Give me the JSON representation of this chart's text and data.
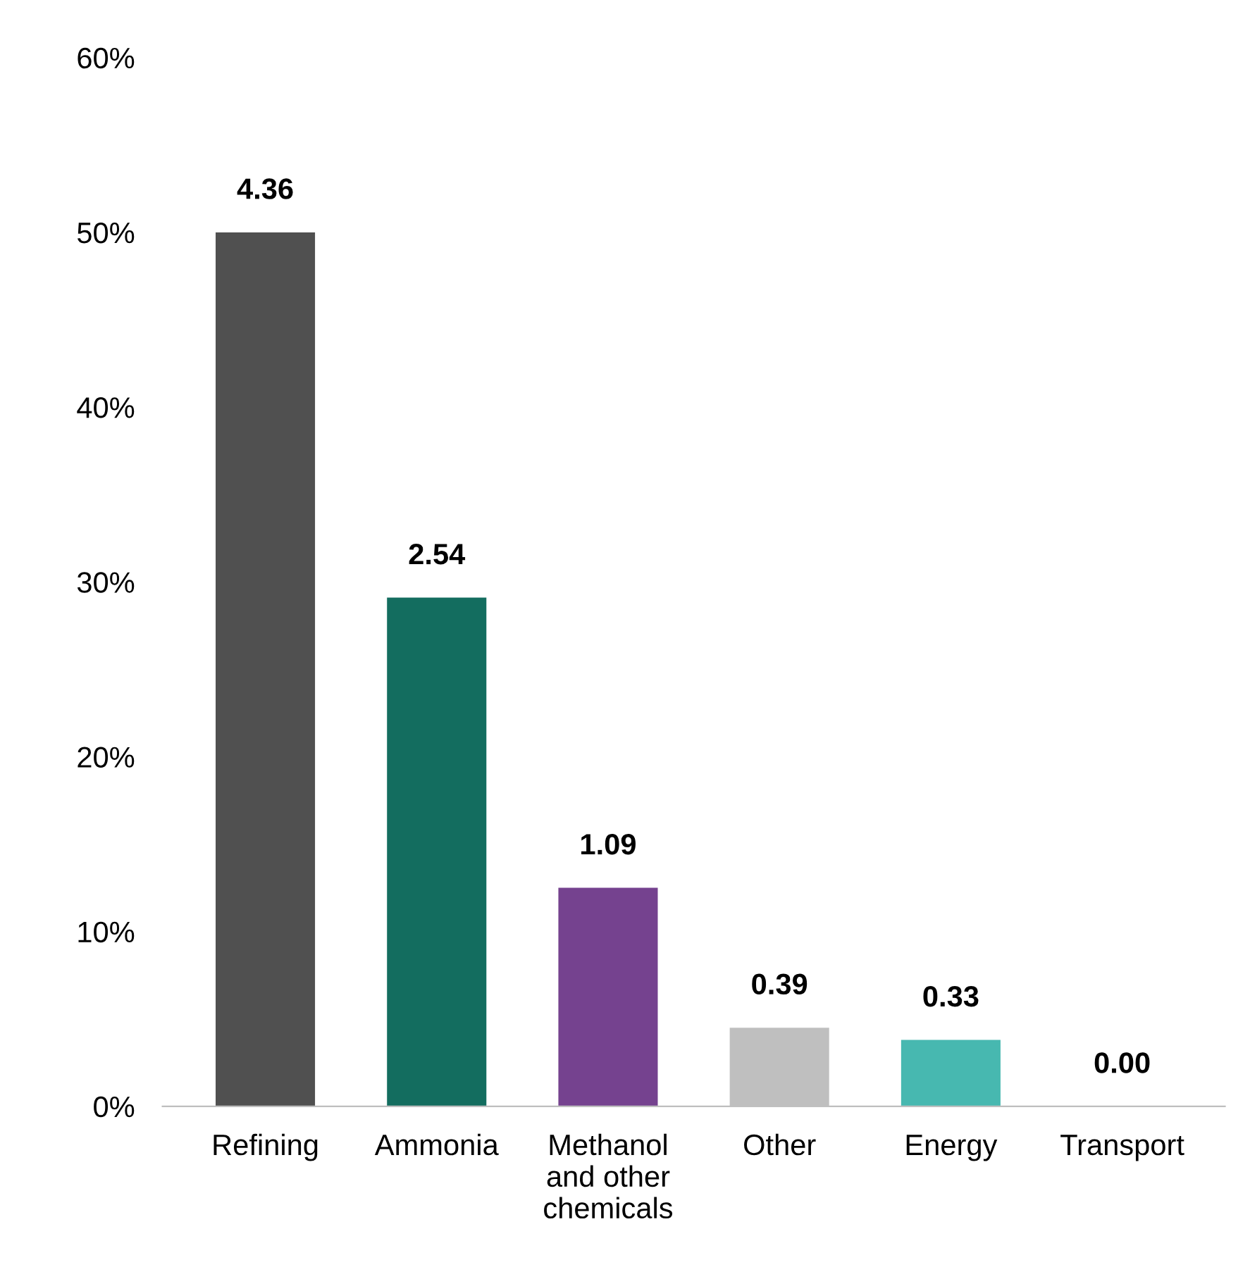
{
  "chart_data": {
    "type": "bar",
    "categories": [
      "Refining",
      "Ammonia",
      "Methanol\nand other\nchemicals",
      "Other",
      "Energy",
      "Transport"
    ],
    "values": [
      50,
      29.1,
      12.5,
      4.5,
      3.8,
      0
    ],
    "colors": [
      "#505050",
      "#136d5f",
      "#75428f",
      "#bfbfbf",
      "#47b8b0",
      "#47b8b0"
    ],
    "annotations": [
      {
        "text": "4.36",
        "x": "Refining",
        "y": 50
      },
      {
        "text": "2.54",
        "x": "Ammonia",
        "y": 29.1
      },
      {
        "text": "1.09",
        "x": "Methanol\nand other\nchemicals",
        "y": 12.5
      },
      {
        "text": "0.39",
        "x": "Other",
        "y": 4.5
      },
      {
        "text": "0.33",
        "x": "Energy",
        "y": 3.8
      },
      {
        "text": "0.00",
        "x": "Transport",
        "y": 0
      }
    ],
    "ylim": [
      0,
      60
    ],
    "yticks": [
      {
        "value": 0,
        "label": "0%"
      },
      {
        "value": 10,
        "label": "10%"
      },
      {
        "value": 20,
        "label": "20%"
      },
      {
        "value": 30,
        "label": "30%"
      },
      {
        "value": 40,
        "label": "40%"
      },
      {
        "value": 50,
        "label": "50%"
      },
      {
        "value": 60,
        "label": "60%"
      }
    ],
    "grid": false,
    "legend": false
  }
}
